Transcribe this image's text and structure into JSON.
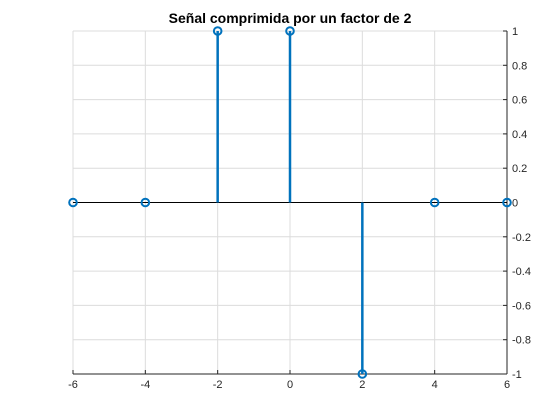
{
  "chart_data": {
    "type": "stem",
    "title": "Señal comprimida por un factor de 2",
    "xlabel": "",
    "ylabel": "",
    "xlim": [
      -6,
      6
    ],
    "ylim": [
      -1,
      1
    ],
    "xticks": [
      -6,
      -4,
      -2,
      0,
      2,
      4,
      6
    ],
    "yticks": [
      -1,
      -0.8,
      -0.6,
      -0.4,
      -0.2,
      0,
      0.2,
      0.4,
      0.6,
      0.8,
      1
    ],
    "xtick_labels": [
      "-6",
      "-4",
      "-2",
      "0",
      "2",
      "4",
      "6"
    ],
    "ytick_labels": [
      "-1",
      "-0.8",
      "-0.6",
      "-0.4",
      "-0.2",
      "0",
      "0.2",
      "0.4",
      "0.6",
      "0.8",
      "1"
    ],
    "y_axis_location": "right",
    "grid": true,
    "series": [
      {
        "x": [
          -6,
          -4,
          -2,
          0,
          2,
          4,
          6
        ],
        "y": [
          0,
          0,
          1,
          1,
          -1,
          0,
          0
        ],
        "color": "#0072BD"
      }
    ]
  }
}
